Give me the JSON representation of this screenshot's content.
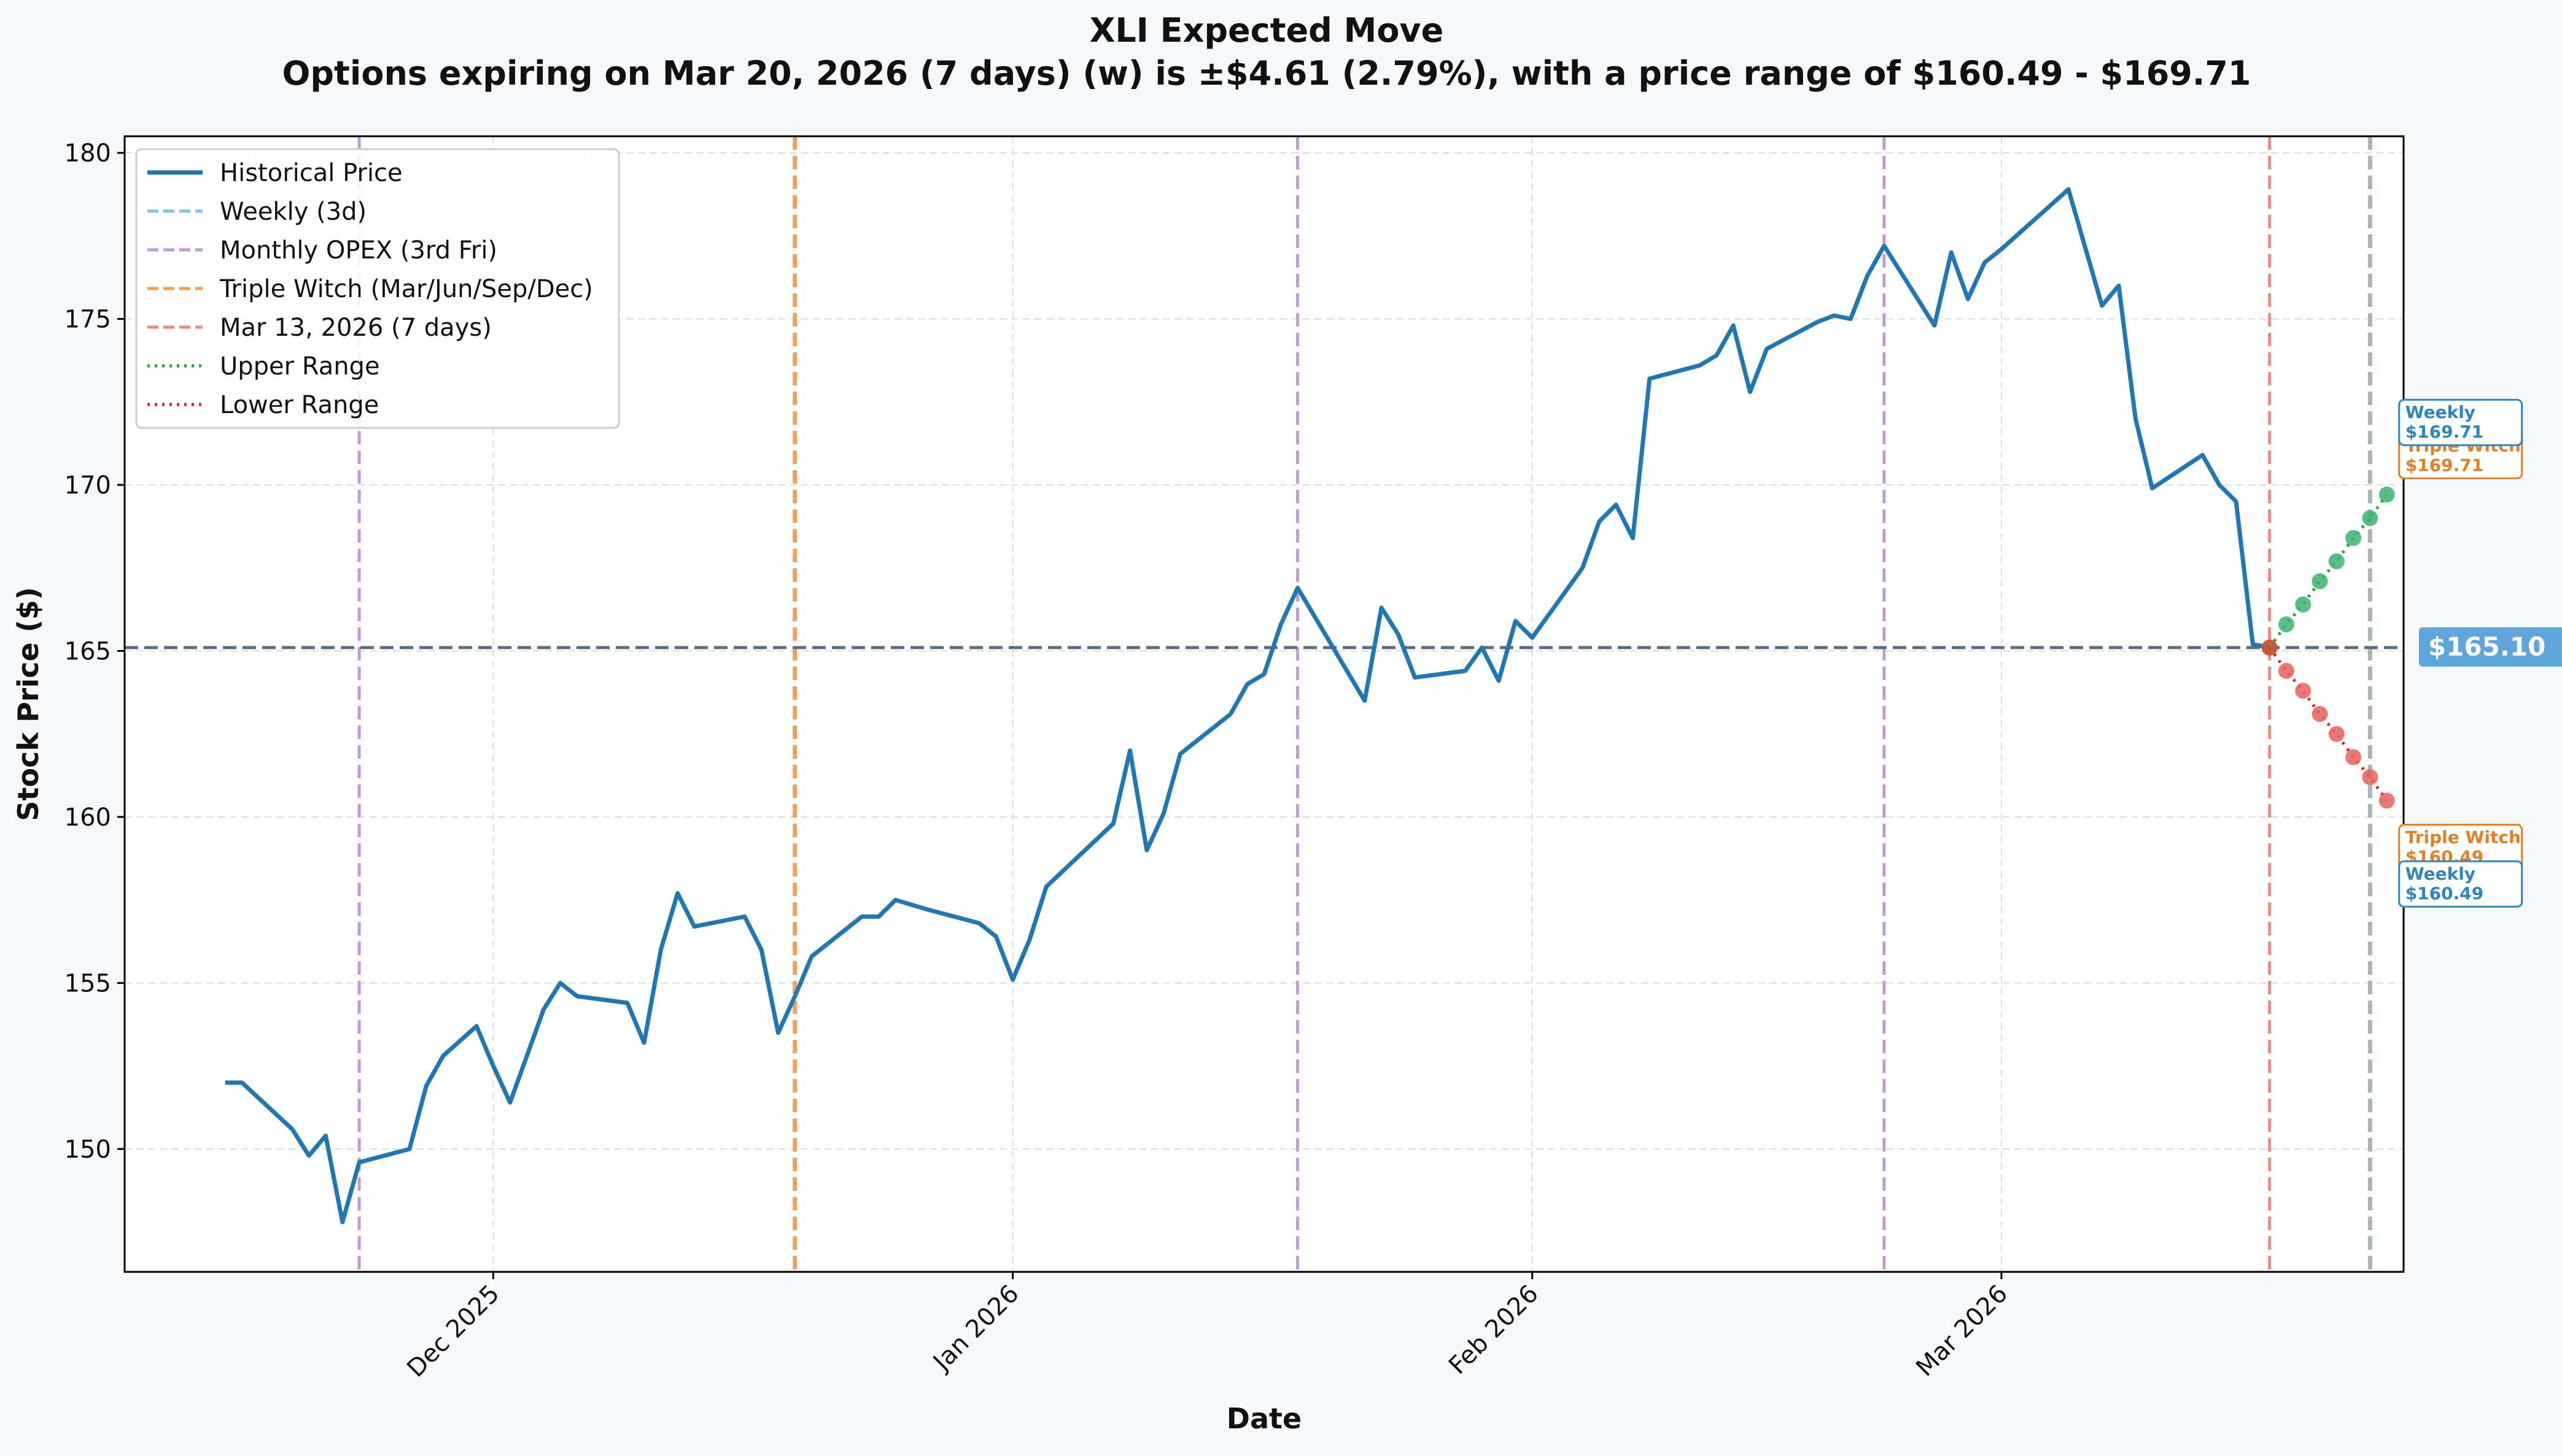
{
  "chart_data": {
    "type": "line",
    "title": "XLI Expected Move",
    "subtitle": "Options expiring on Mar 20, 2026 (7 days) (w) is ±$4.61 (2.79%), with a price range of $160.49 - $169.71",
    "xlabel": "Date",
    "ylabel": "Stock Price ($)",
    "xlim": [
      "2025-11-09",
      "2026-03-25"
    ],
    "ylim": [
      146.3,
      180.5
    ],
    "grid": true,
    "legend_position": "top-left",
    "x_ticks": [
      {
        "date": "2025-12-01",
        "label": "Dec 2025"
      },
      {
        "date": "2026-01-01",
        "label": "Jan 2026"
      },
      {
        "date": "2026-02-01",
        "label": "Feb 2026"
      },
      {
        "date": "2026-03-01",
        "label": "Mar 2026"
      }
    ],
    "y_ticks": [
      150,
      155,
      160,
      165,
      170,
      175,
      180
    ],
    "series": [
      {
        "name": "Historical Price",
        "color": "#1f77b4",
        "points": [
          [
            "2025-11-15",
            152.0
          ],
          [
            "2025-11-16",
            152.0
          ],
          [
            "2025-11-19",
            150.6
          ],
          [
            "2025-11-20",
            149.8
          ],
          [
            "2025-11-21",
            150.4
          ],
          [
            "2025-11-22",
            147.8
          ],
          [
            "2025-11-23",
            149.6
          ],
          [
            "2025-11-26",
            150.0
          ],
          [
            "2025-11-27",
            151.9
          ],
          [
            "2025-11-28",
            152.8
          ],
          [
            "2025-11-30",
            153.7
          ],
          [
            "2025-12-01",
            152.5
          ],
          [
            "2025-12-02",
            151.4
          ],
          [
            "2025-12-03",
            152.8
          ],
          [
            "2025-12-04",
            154.2
          ],
          [
            "2025-12-05",
            155.0
          ],
          [
            "2025-12-06",
            154.6
          ],
          [
            "2025-12-09",
            154.4
          ],
          [
            "2025-12-10",
            153.2
          ],
          [
            "2025-12-11",
            156.0
          ],
          [
            "2025-12-12",
            157.7
          ],
          [
            "2025-12-13",
            156.7
          ],
          [
            "2025-12-16",
            157.0
          ],
          [
            "2025-12-17",
            156.0
          ],
          [
            "2025-12-18",
            153.5
          ],
          [
            "2025-12-19",
            154.6
          ],
          [
            "2025-12-20",
            155.8
          ],
          [
            "2025-12-23",
            157.0
          ],
          [
            "2025-12-24",
            157.0
          ],
          [
            "2025-12-25",
            157.5
          ],
          [
            "2025-12-27",
            157.2
          ],
          [
            "2025-12-30",
            156.8
          ],
          [
            "2025-12-31",
            156.4
          ],
          [
            "2026-01-01",
            155.1
          ],
          [
            "2026-01-02",
            156.3
          ],
          [
            "2026-01-03",
            157.9
          ],
          [
            "2026-01-07",
            159.8
          ],
          [
            "2026-01-08",
            162.0
          ],
          [
            "2026-01-09",
            159.0
          ],
          [
            "2026-01-10",
            160.1
          ],
          [
            "2026-01-11",
            161.9
          ],
          [
            "2026-01-14",
            163.1
          ],
          [
            "2026-01-15",
            164.0
          ],
          [
            "2026-01-16",
            164.3
          ],
          [
            "2026-01-17",
            165.8
          ],
          [
            "2026-01-18",
            166.9
          ],
          [
            "2026-01-22",
            163.5
          ],
          [
            "2026-01-23",
            166.3
          ],
          [
            "2026-01-24",
            165.5
          ],
          [
            "2026-01-25",
            164.2
          ],
          [
            "2026-01-28",
            164.4
          ],
          [
            "2026-01-29",
            165.1
          ],
          [
            "2026-01-30",
            164.1
          ],
          [
            "2026-01-31",
            165.9
          ],
          [
            "2026-02-01",
            165.4
          ],
          [
            "2026-02-02",
            166.1
          ],
          [
            "2026-02-03",
            166.8
          ],
          [
            "2026-02-04",
            167.5
          ],
          [
            "2026-02-05",
            168.9
          ],
          [
            "2026-02-06",
            169.4
          ],
          [
            "2026-02-07",
            168.4
          ],
          [
            "2026-02-08",
            173.2
          ],
          [
            "2026-02-11",
            173.6
          ],
          [
            "2026-02-12",
            173.9
          ],
          [
            "2026-02-13",
            174.8
          ],
          [
            "2026-02-14",
            172.8
          ],
          [
            "2026-02-15",
            174.1
          ],
          [
            "2026-02-18",
            174.9
          ],
          [
            "2026-02-19",
            175.1
          ],
          [
            "2026-02-20",
            175.0
          ],
          [
            "2026-02-21",
            176.3
          ],
          [
            "2026-02-22",
            177.2
          ],
          [
            "2026-02-25",
            174.8
          ],
          [
            "2026-02-26",
            177.0
          ],
          [
            "2026-02-27",
            175.6
          ],
          [
            "2026-02-28",
            176.7
          ],
          [
            "2026-03-01",
            177.1
          ],
          [
            "2026-03-03",
            178.0
          ],
          [
            "2026-03-05",
            178.9
          ],
          [
            "2026-03-07",
            175.4
          ],
          [
            "2026-03-08",
            176.0
          ],
          [
            "2026-03-09",
            172.0
          ],
          [
            "2026-03-10",
            169.9
          ],
          [
            "2026-03-13",
            170.9
          ],
          [
            "2026-03-14",
            170.0
          ],
          [
            "2026-03-15",
            169.5
          ],
          [
            "2026-03-16",
            165.2
          ],
          [
            "2026-03-17",
            165.1
          ]
        ]
      }
    ],
    "current_price": {
      "value": 165.1,
      "label": "$165.10",
      "color": "#5a6b80",
      "label_color": "#5da5da"
    },
    "upper_range": {
      "name": "Upper Range",
      "color": "#2ca02c",
      "marker_color": "#3cb371",
      "points": [
        [
          "2026-03-17",
          165.1
        ],
        [
          "2026-03-18",
          165.8
        ],
        [
          "2026-03-19",
          166.4
        ],
        [
          "2026-03-20",
          167.1
        ],
        [
          "2026-03-21",
          167.7
        ],
        [
          "2026-03-22",
          168.4
        ],
        [
          "2026-03-23",
          169.0
        ],
        [
          "2026-03-24",
          169.71
        ]
      ]
    },
    "lower_range": {
      "name": "Lower Range",
      "color": "#d62728",
      "marker_color": "#e8615a",
      "points": [
        [
          "2026-03-17",
          165.1
        ],
        [
          "2026-03-18",
          164.4
        ],
        [
          "2026-03-19",
          163.8
        ],
        [
          "2026-03-20",
          163.1
        ],
        [
          "2026-03-21",
          162.5
        ],
        [
          "2026-03-22",
          161.8
        ],
        [
          "2026-03-23",
          161.2
        ],
        [
          "2026-03-24",
          160.49
        ]
      ]
    },
    "vertical_lines": [
      {
        "name": "Monthly OPEX (3rd Fri)",
        "color": "#c39bd3",
        "width": 5,
        "dates": [
          "2025-11-23",
          "2026-01-18",
          "2026-02-22"
        ]
      },
      {
        "name": "Triple Witch (Mar/Jun/Sep/Dec)",
        "color": "#f0a15c",
        "width": 7,
        "dates": [
          "2025-12-19",
          "2026-03-23"
        ]
      },
      {
        "name": "Mar 13, 2026 (7 days)",
        "color": "#ec8c84",
        "width": 5,
        "dates": [
          "2026-03-17"
        ]
      },
      {
        "name": "Weekly (3d)",
        "color": "#7fc3ea",
        "width": 4,
        "dates": [
          "2026-03-23"
        ]
      }
    ],
    "legend": [
      {
        "label": "Historical Price",
        "style": "solid",
        "color": "#1f77b4"
      },
      {
        "label": "Weekly (3d)",
        "style": "dashed",
        "color": "#7fc3ea"
      },
      {
        "label": "Monthly OPEX (3rd Fri)",
        "style": "dashed",
        "color": "#c39bd3"
      },
      {
        "label": "Triple Witch (Mar/Jun/Sep/Dec)",
        "style": "dashed",
        "color": "#f0a15c"
      },
      {
        "label": "Mar 13, 2026 (7 days)",
        "style": "dashed",
        "color": "#ec8c84"
      },
      {
        "label": "Upper Range",
        "style": "dotted",
        "color": "#2ca02c"
      },
      {
        "label": "Lower Range",
        "style": "dotted",
        "color": "#d62728"
      }
    ],
    "annotations": [
      {
        "name": "triple-witch-upper-label",
        "lines": [
          "Triple Witch",
          "$169.71"
        ],
        "color": "#e67e22",
        "anchor_date": "2026-03-24",
        "anchor_value": 170.9
      },
      {
        "name": "weekly-upper-label",
        "lines": [
          "Weekly",
          "$169.71"
        ],
        "color": "#2e86c1",
        "anchor_date": "2026-03-24",
        "anchor_value": 171.9
      },
      {
        "name": "triple-witch-lower-label",
        "lines": [
          "Triple Witch",
          "$160.49"
        ],
        "color": "#e67e22",
        "anchor_date": "2026-03-24",
        "anchor_value": 159.1
      },
      {
        "name": "weekly-lower-label",
        "lines": [
          "Weekly",
          "$160.49"
        ],
        "color": "#2e86c1",
        "anchor_date": "2026-03-24",
        "anchor_value": 158.0
      }
    ]
  }
}
